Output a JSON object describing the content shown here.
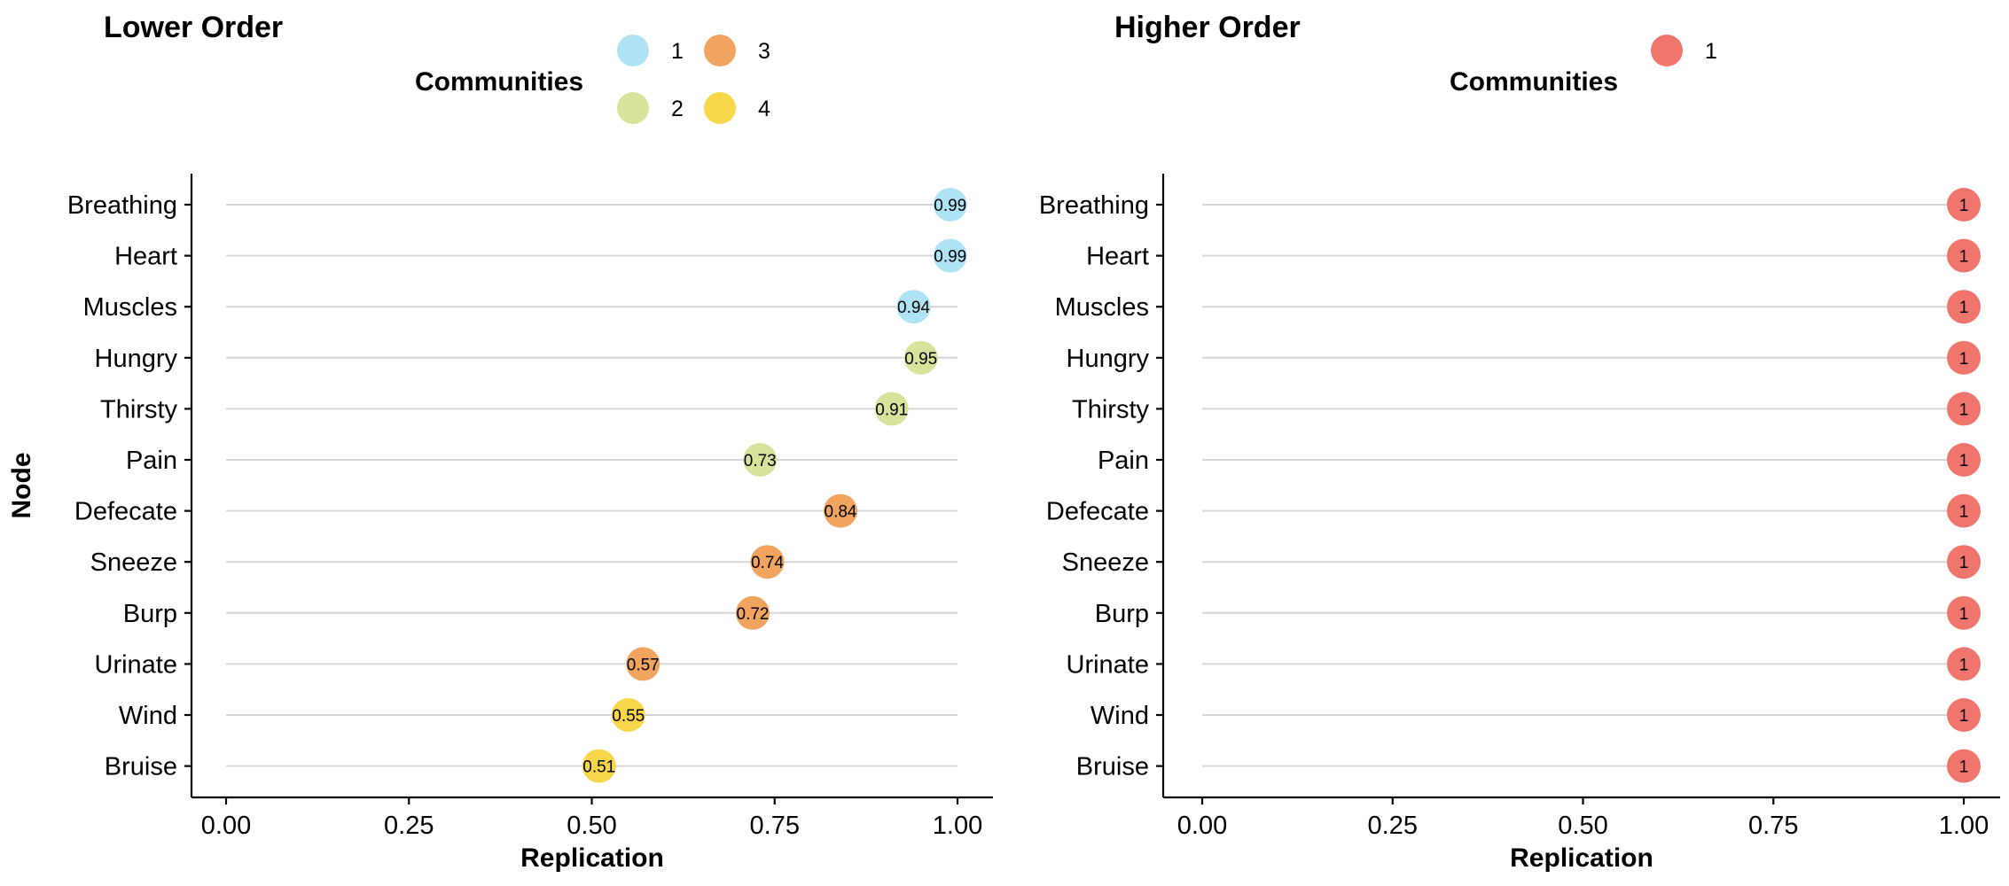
{
  "chart_data": [
    {
      "type": "scatter",
      "title": "Lower Order",
      "xlabel": "Replication",
      "ylabel": "Node",
      "xlim": [
        0,
        1
      ],
      "x_ticks": [
        "0.00",
        "0.25",
        "0.50",
        "0.75",
        "1.00"
      ],
      "x_tick_values": [
        0,
        0.25,
        0.5,
        0.75,
        1
      ],
      "categories": [
        "Breathing",
        "Heart",
        "Muscles",
        "Hungry",
        "Thirsty",
        "Pain",
        "Defecate",
        "Sneeze",
        "Burp",
        "Urinate",
        "Wind",
        "Bruise"
      ],
      "values": [
        0.99,
        0.99,
        0.94,
        0.95,
        0.91,
        0.73,
        0.84,
        0.74,
        0.72,
        0.57,
        0.55,
        0.51
      ],
      "value_labels": [
        "0.99",
        "0.99",
        "0.94",
        "0.95",
        "0.91",
        "0.73",
        "0.84",
        "0.74",
        "0.72",
        "0.57",
        "0.55",
        "0.51"
      ],
      "community": [
        "1",
        "1",
        "1",
        "2",
        "2",
        "2",
        "3",
        "3",
        "3",
        "3",
        "4",
        "4"
      ],
      "legend": {
        "title": "Communities",
        "position": "top",
        "entries": [
          {
            "label": "1",
            "color": "#AEE3F5"
          },
          {
            "label": "2",
            "color": "#D7E39A"
          },
          {
            "label": "3",
            "color": "#F0A45F"
          },
          {
            "label": "4",
            "color": "#F7D64A"
          }
        ]
      },
      "grid": "horizontal"
    },
    {
      "type": "scatter",
      "title": "Higher Order",
      "xlabel": "Replication",
      "ylabel": "",
      "xlim": [
        0,
        1
      ],
      "x_ticks": [
        "0.00",
        "0.25",
        "0.50",
        "0.75",
        "1.00"
      ],
      "x_tick_values": [
        0,
        0.25,
        0.5,
        0.75,
        1
      ],
      "categories": [
        "Breathing",
        "Heart",
        "Muscles",
        "Hungry",
        "Thirsty",
        "Pain",
        "Defecate",
        "Sneeze",
        "Burp",
        "Urinate",
        "Wind",
        "Bruise"
      ],
      "values": [
        1,
        1,
        1,
        1,
        1,
        1,
        1,
        1,
        1,
        1,
        1,
        1
      ],
      "value_labels": [
        "1",
        "1",
        "1",
        "1",
        "1",
        "1",
        "1",
        "1",
        "1",
        "1",
        "1",
        "1"
      ],
      "community": [
        "1",
        "1",
        "1",
        "1",
        "1",
        "1",
        "1",
        "1",
        "1",
        "1",
        "1",
        "1"
      ],
      "legend": {
        "title": "Communities",
        "position": "top",
        "entries": [
          {
            "label": "1",
            "color": "#F0766D"
          }
        ]
      },
      "grid": "horizontal"
    }
  ]
}
